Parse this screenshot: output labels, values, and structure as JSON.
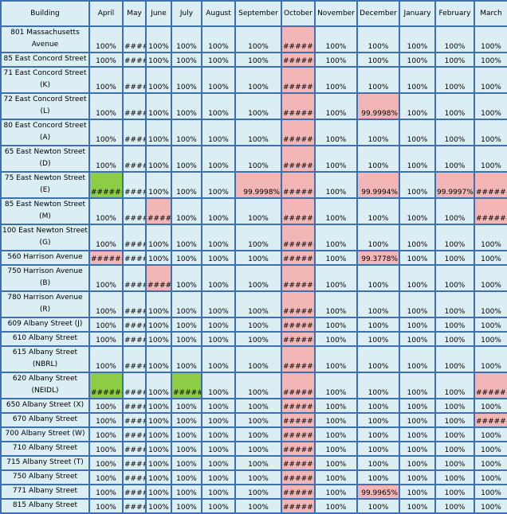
{
  "colors": {
    "cell_bg": "#dbeef4",
    "grid": "#3f6faf",
    "pink": "#f2b6b6",
    "green": "#8ccd45"
  },
  "headers": [
    "Building",
    "April",
    "May",
    "June",
    "July",
    "August",
    "September",
    "October",
    "November",
    "December",
    "January",
    "February",
    "March"
  ],
  "rows": [
    {
      "building": "801 Massachusetts Avenue",
      "cells": [
        "100%",
        "####",
        "100%",
        "100%",
        "100%",
        "100%",
        "#######",
        "100%",
        "100%",
        "100%",
        "100%",
        "100%"
      ],
      "tall": true,
      "pink": [
        6
      ],
      "green": []
    },
    {
      "building": "85 East Concord Street",
      "cells": [
        "100%",
        "####",
        "100%",
        "100%",
        "100%",
        "100%",
        "#######",
        "100%",
        "100%",
        "100%",
        "100%",
        "100%"
      ],
      "tall": false,
      "pink": [
        6
      ],
      "green": []
    },
    {
      "building": "71 East Concord Street (K)",
      "cells": [
        "100%",
        "####",
        "100%",
        "100%",
        "100%",
        "100%",
        "#######",
        "100%",
        "100%",
        "100%",
        "100%",
        "100%"
      ],
      "tall": true,
      "pink": [
        6
      ],
      "green": []
    },
    {
      "building": "72 East Concord Street (L)",
      "cells": [
        "100%",
        "####",
        "100%",
        "100%",
        "100%",
        "100%",
        "#######",
        "100%",
        "99.9998%",
        "100%",
        "100%",
        "100%"
      ],
      "tall": true,
      "pink": [
        6,
        8
      ],
      "green": []
    },
    {
      "building": "80 East Concord Street (A)",
      "cells": [
        "100%",
        "####",
        "100%",
        "100%",
        "100%",
        "100%",
        "#######",
        "100%",
        "100%",
        "100%",
        "100%",
        "100%"
      ],
      "tall": true,
      "pink": [
        6
      ],
      "green": []
    },
    {
      "building": "65 East Newton Street (D)",
      "cells": [
        "100%",
        "####",
        "100%",
        "100%",
        "100%",
        "100%",
        "#######",
        "100%",
        "100%",
        "100%",
        "100%",
        "100%"
      ],
      "tall": true,
      "pink": [
        6
      ],
      "green": []
    },
    {
      "building": "75 East Newton Street (E)",
      "cells": [
        "#######",
        "####",
        "100%",
        "100%",
        "100%",
        "99.9998%",
        "#######",
        "100%",
        "99.9994%",
        "100%",
        "99.9997%",
        "#######"
      ],
      "tall": true,
      "pink": [
        5,
        6,
        8,
        10,
        11
      ],
      "green": [
        0
      ]
    },
    {
      "building": "85 East Newton Street (M)",
      "cells": [
        "100%",
        "####",
        "######",
        "100%",
        "100%",
        "100%",
        "#######",
        "100%",
        "100%",
        "100%",
        "100%",
        "#######"
      ],
      "tall": true,
      "pink": [
        2,
        6,
        11
      ],
      "green": []
    },
    {
      "building": "100 East Newton Street (G)",
      "cells": [
        "100%",
        "####",
        "100%",
        "100%",
        "100%",
        "100%",
        "#######",
        "100%",
        "100%",
        "100%",
        "100%",
        "100%"
      ],
      "tall": true,
      "pink": [
        6
      ],
      "green": []
    },
    {
      "building": "560 Harrison Avenue",
      "cells": [
        "#######",
        "####",
        "100%",
        "100%",
        "100%",
        "100%",
        "#######",
        "100%",
        "99.3778%",
        "100%",
        "100%",
        "100%"
      ],
      "tall": false,
      "pink": [
        0,
        6,
        8
      ],
      "green": []
    },
    {
      "building": "750 Harrison Avenue (B)",
      "cells": [
        "100%",
        "####",
        "######",
        "100%",
        "100%",
        "100%",
        "#######",
        "100%",
        "100%",
        "100%",
        "100%",
        "100%"
      ],
      "tall": true,
      "pink": [
        2,
        6
      ],
      "green": []
    },
    {
      "building": "780 Harrison Avenue (R)",
      "cells": [
        "100%",
        "####",
        "100%",
        "100%",
        "100%",
        "100%",
        "#######",
        "100%",
        "100%",
        "100%",
        "100%",
        "100%"
      ],
      "tall": true,
      "pink": [
        6
      ],
      "green": []
    },
    {
      "building": "609 Albany Street (J)",
      "cells": [
        "100%",
        "####",
        "100%",
        "100%",
        "100%",
        "100%",
        "#######",
        "100%",
        "100%",
        "100%",
        "100%",
        "100%"
      ],
      "tall": false,
      "pink": [
        6
      ],
      "green": []
    },
    {
      "building": "610 Albany Street",
      "cells": [
        "100%",
        "####",
        "100%",
        "100%",
        "100%",
        "100%",
        "#######",
        "100%",
        "100%",
        "100%",
        "100%",
        "100%"
      ],
      "tall": false,
      "pink": [
        6
      ],
      "green": []
    },
    {
      "building": "615 Albany Street (NBRL)",
      "cells": [
        "100%",
        "####",
        "100%",
        "100%",
        "100%",
        "100%",
        "#######",
        "100%",
        "100%",
        "100%",
        "100%",
        "100%"
      ],
      "tall": true,
      "pink": [
        6
      ],
      "green": []
    },
    {
      "building": "620 Albany Street (NEIDL)",
      "cells": [
        "#######",
        "####",
        "100%",
        "######",
        "100%",
        "100%",
        "#######",
        "100%",
        "100%",
        "100%",
        "100%",
        "#######"
      ],
      "tall": true,
      "pink": [
        6,
        11
      ],
      "green": [
        0,
        3
      ]
    },
    {
      "building": "650 Albany Street (X)",
      "cells": [
        "100%",
        "####",
        "100%",
        "100%",
        "100%",
        "100%",
        "#######",
        "100%",
        "100%",
        "100%",
        "100%",
        "100%"
      ],
      "tall": false,
      "pink": [
        6
      ],
      "green": []
    },
    {
      "building": "670 Albany Street",
      "cells": [
        "100%",
        "####",
        "100%",
        "100%",
        "100%",
        "100%",
        "#######",
        "100%",
        "100%",
        "100%",
        "100%",
        "#######"
      ],
      "tall": false,
      "pink": [
        6,
        11
      ],
      "green": []
    },
    {
      "building": "700 Albany Street (W)",
      "cells": [
        "100%",
        "####",
        "100%",
        "100%",
        "100%",
        "100%",
        "#######",
        "100%",
        "100%",
        "100%",
        "100%",
        "100%"
      ],
      "tall": false,
      "pink": [
        6
      ],
      "green": []
    },
    {
      "building": "710 Albany Street",
      "cells": [
        "100%",
        "####",
        "100%",
        "100%",
        "100%",
        "100%",
        "#######",
        "100%",
        "100%",
        "100%",
        "100%",
        "100%"
      ],
      "tall": false,
      "pink": [
        6
      ],
      "green": []
    },
    {
      "building": "715 Albany Street (T)",
      "cells": [
        "100%",
        "####",
        "100%",
        "100%",
        "100%",
        "100%",
        "#######",
        "100%",
        "100%",
        "100%",
        "100%",
        "100%"
      ],
      "tall": false,
      "pink": [
        6
      ],
      "green": []
    },
    {
      "building": "750 Albany Street",
      "cells": [
        "100%",
        "####",
        "100%",
        "100%",
        "100%",
        "100%",
        "#######",
        "100%",
        "100%",
        "100%",
        "100%",
        "100%"
      ],
      "tall": false,
      "pink": [
        6
      ],
      "green": []
    },
    {
      "building": "771 Albany Street",
      "cells": [
        "100%",
        "####",
        "100%",
        "100%",
        "100%",
        "100%",
        "#######",
        "100%",
        "99.9965%",
        "100%",
        "100%",
        "100%"
      ],
      "tall": false,
      "pink": [
        6,
        8
      ],
      "green": []
    },
    {
      "building": "815 Albany Street",
      "cells": [
        "100%",
        "####",
        "100%",
        "100%",
        "100%",
        "100%",
        "#######",
        "100%",
        "100%",
        "100%",
        "100%",
        "100%"
      ],
      "tall": false,
      "pink": [
        6
      ],
      "green": []
    }
  ]
}
